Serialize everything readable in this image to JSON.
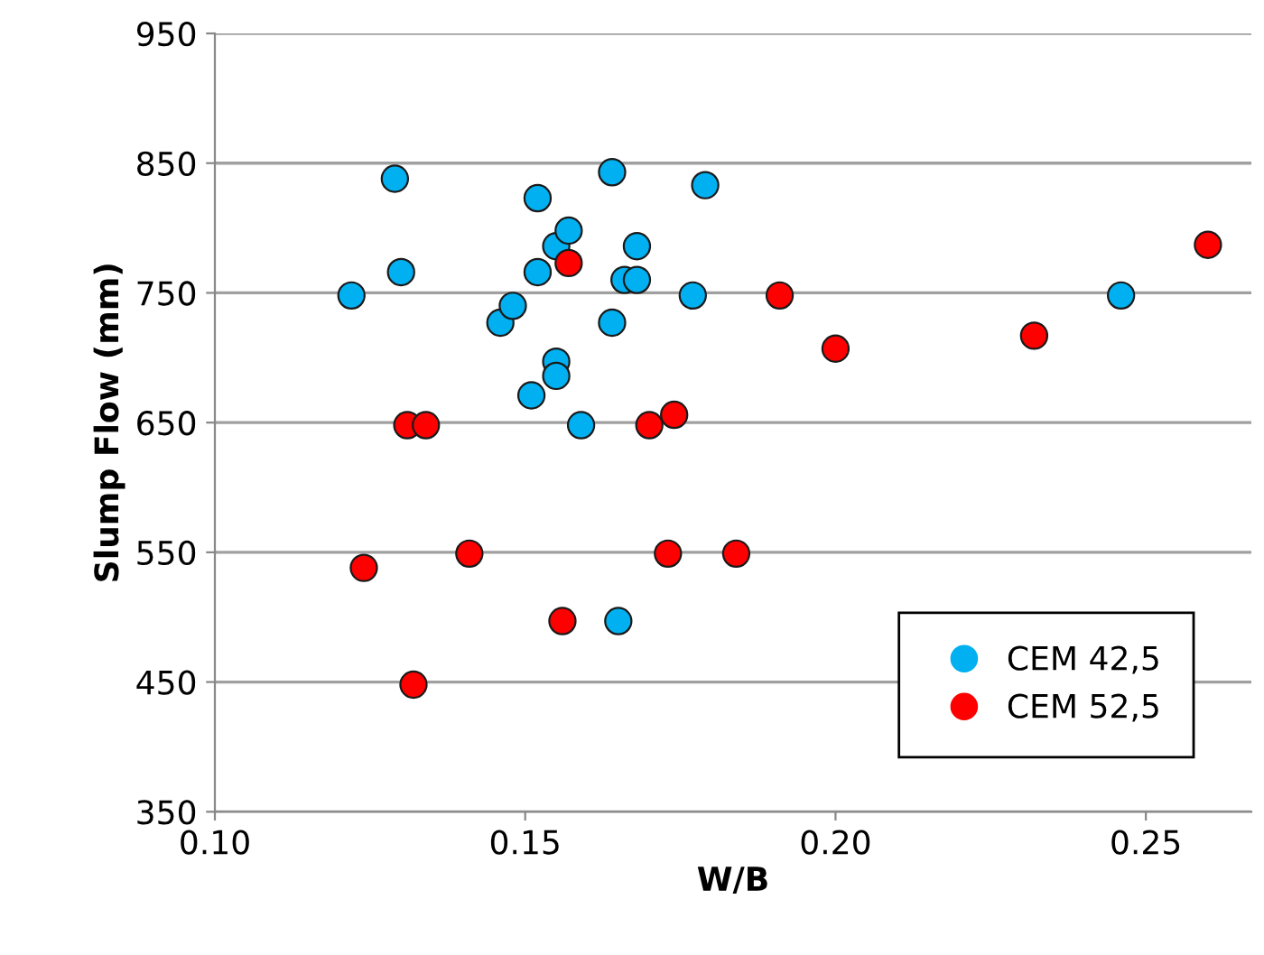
{
  "chart_data": {
    "type": "scatter",
    "xlabel": "W/B",
    "ylabel": "Slump Flow (mm)",
    "xlim": [
      0.1,
      0.267
    ],
    "ylim": [
      350,
      950
    ],
    "xticks": [
      {
        "value": 0.1,
        "label": "0.10"
      },
      {
        "value": 0.15,
        "label": "0.15"
      },
      {
        "value": 0.2,
        "label": "0.20"
      },
      {
        "value": 0.25,
        "label": "0.25"
      }
    ],
    "yticks": [
      350,
      450,
      550,
      650,
      750,
      850,
      950
    ],
    "grid": "y",
    "legend": "bottom right",
    "marker": "circle",
    "series": [
      {
        "name": "CEM 42,5",
        "color": "#00b0f0",
        "x": [
          0.122,
          0.129,
          0.13,
          0.146,
          0.148,
          0.152,
          0.152,
          0.151,
          0.155,
          0.157,
          0.155,
          0.155,
          0.159,
          0.164,
          0.164,
          0.166,
          0.168,
          0.168,
          0.179,
          0.177,
          0.165,
          0.246
        ],
        "values": [
          748,
          838,
          766,
          727,
          740,
          823,
          766,
          671,
          786,
          798,
          697,
          686,
          648,
          843,
          727,
          760,
          786,
          760,
          833,
          748,
          497,
          748
        ]
      },
      {
        "name": "CEM 52,5",
        "color": "#ff0000",
        "x": [
          0.157,
          0.131,
          0.134,
          0.17,
          0.174,
          0.124,
          0.141,
          0.173,
          0.184,
          0.156,
          0.132,
          0.191,
          0.2,
          0.232,
          0.26
        ],
        "values": [
          773,
          648,
          648,
          648,
          656,
          538,
          549,
          549,
          549,
          497,
          448,
          748,
          707,
          717,
          787
        ]
      }
    ]
  }
}
